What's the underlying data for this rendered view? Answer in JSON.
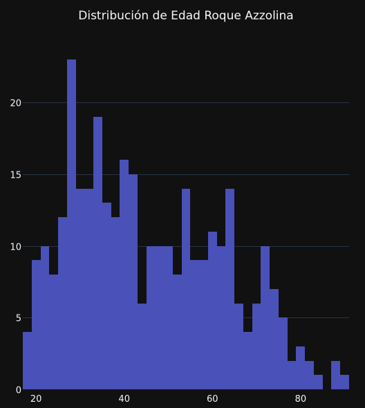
{
  "chart_data": {
    "type": "bar",
    "title": "Distribución de Edad Roque Azzolina",
    "xlabel": "",
    "ylabel": "",
    "bin_width": 2,
    "bins": [
      {
        "x0": 17,
        "x1": 19,
        "count": 4
      },
      {
        "x0": 19,
        "x1": 21,
        "count": 9
      },
      {
        "x0": 21,
        "x1": 23,
        "count": 10
      },
      {
        "x0": 23,
        "x1": 25,
        "count": 8
      },
      {
        "x0": 25,
        "x1": 27,
        "count": 12
      },
      {
        "x0": 27,
        "x1": 29,
        "count": 23
      },
      {
        "x0": 29,
        "x1": 31,
        "count": 14
      },
      {
        "x0": 31,
        "x1": 33,
        "count": 14
      },
      {
        "x0": 33,
        "x1": 35,
        "count": 19
      },
      {
        "x0": 35,
        "x1": 37,
        "count": 13
      },
      {
        "x0": 37,
        "x1": 39,
        "count": 12
      },
      {
        "x0": 39,
        "x1": 41,
        "count": 16
      },
      {
        "x0": 41,
        "x1": 43,
        "count": 15
      },
      {
        "x0": 43,
        "x1": 45,
        "count": 6
      },
      {
        "x0": 45,
        "x1": 47,
        "count": 10
      },
      {
        "x0": 47,
        "x1": 49,
        "count": 10
      },
      {
        "x0": 49,
        "x1": 51,
        "count": 10
      },
      {
        "x0": 51,
        "x1": 53,
        "count": 8
      },
      {
        "x0": 53,
        "x1": 55,
        "count": 14
      },
      {
        "x0": 55,
        "x1": 57,
        "count": 9
      },
      {
        "x0": 57,
        "x1": 59,
        "count": 9
      },
      {
        "x0": 59,
        "x1": 61,
        "count": 11
      },
      {
        "x0": 61,
        "x1": 63,
        "count": 10
      },
      {
        "x0": 63,
        "x1": 65,
        "count": 14
      },
      {
        "x0": 65,
        "x1": 67,
        "count": 6
      },
      {
        "x0": 67,
        "x1": 69,
        "count": 4
      },
      {
        "x0": 69,
        "x1": 71,
        "count": 6
      },
      {
        "x0": 71,
        "x1": 73,
        "count": 10
      },
      {
        "x0": 73,
        "x1": 75,
        "count": 7
      },
      {
        "x0": 75,
        "x1": 77,
        "count": 5
      },
      {
        "x0": 77,
        "x1": 79,
        "count": 2
      },
      {
        "x0": 79,
        "x1": 81,
        "count": 3
      },
      {
        "x0": 81,
        "x1": 83,
        "count": 2
      },
      {
        "x0": 83,
        "x1": 85,
        "count": 1
      },
      {
        "x0": 85,
        "x1": 87,
        "count": 0
      },
      {
        "x0": 87,
        "x1": 89,
        "count": 2
      },
      {
        "x0": 89,
        "x1": 91,
        "count": 1
      }
    ],
    "xlim": [
      17,
      91
    ],
    "ylim": [
      0,
      24.2
    ],
    "x_ticks": [
      20,
      40,
      60,
      80
    ],
    "y_ticks": [
      0,
      5,
      10,
      15,
      20
    ],
    "grid": true,
    "legend": "none"
  },
  "colors": {
    "background": "#111111",
    "bar": "#4a51b8",
    "grid": "#283442",
    "text": "#f2f5fa"
  }
}
